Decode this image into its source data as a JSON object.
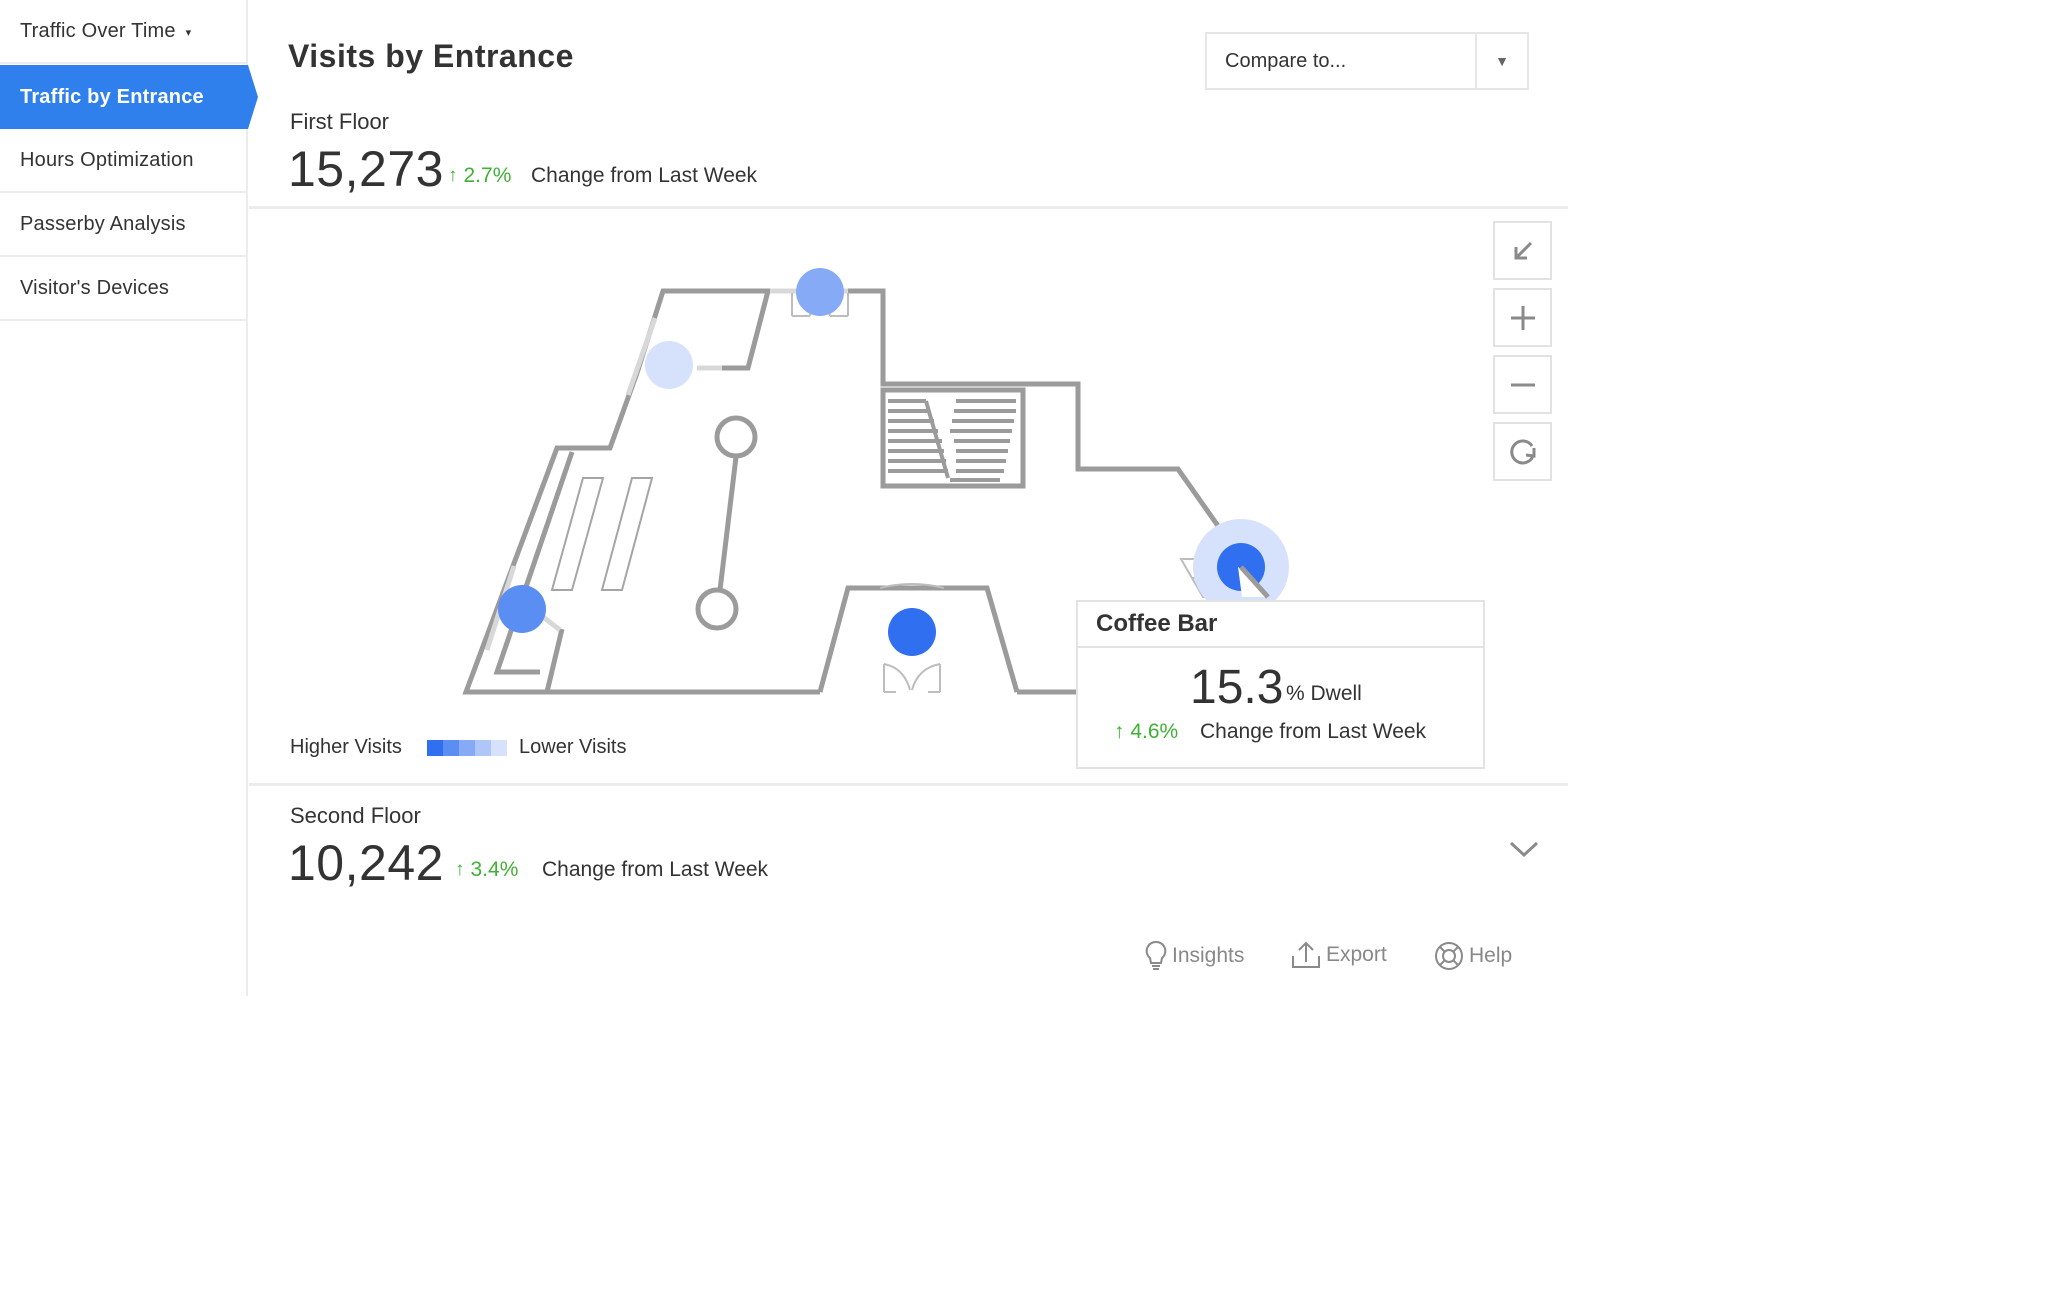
{
  "sidebar": {
    "items": [
      {
        "label": "Traffic Over Time",
        "has_dropdown": true,
        "active": false
      },
      {
        "label": "Traffic by Entrance",
        "active": true
      },
      {
        "label": "Hours Optimization",
        "active": false
      },
      {
        "label": "Passerby Analysis",
        "active": false
      },
      {
        "label": "Visitor's Devices",
        "active": false
      }
    ],
    "dropdown_glyph": "▾"
  },
  "header": {
    "title": "Visits by Entrance",
    "compare": {
      "label": "Compare to...",
      "caret": "▼"
    }
  },
  "floors": [
    {
      "name": "First Floor",
      "count": "15,273",
      "change": "2.7%",
      "change_direction": "up",
      "change_label": "Change from Last Week",
      "expanded": true
    },
    {
      "name": "Second Floor",
      "count": "10,242",
      "change": "3.4%",
      "change_direction": "up",
      "change_label": "Change from Last Week",
      "expanded": false
    }
  ],
  "map": {
    "controls": [
      {
        "name": "collapse-map-button",
        "icon": "arrow-down-left-icon"
      },
      {
        "name": "zoom-in-button",
        "icon": "plus-icon"
      },
      {
        "name": "zoom-out-button",
        "icon": "minus-icon"
      },
      {
        "name": "refresh-button",
        "icon": "refresh-icon"
      }
    ],
    "legend": {
      "high_label": "Higher Visits",
      "low_label": "Lower Visits",
      "scale_colors": [
        "#2f6ff0",
        "#5b8ef3",
        "#86aaf6",
        "#afc6f9",
        "#d6e2fc"
      ]
    },
    "entrances": [
      {
        "name": "north",
        "intensity": "medium"
      },
      {
        "name": "north-west",
        "intensity": "low"
      },
      {
        "name": "west",
        "intensity": "medium"
      },
      {
        "name": "south",
        "intensity": "high"
      },
      {
        "name": "coffee-bar",
        "intensity": "high",
        "selected": true
      }
    ]
  },
  "tooltip": {
    "title": "Coffee Bar",
    "value": "15.3",
    "unit": "% Dwell",
    "change": "4.6%",
    "change_direction": "up",
    "change_label": "Change from Last Week"
  },
  "footer": {
    "links": [
      {
        "label": "Insights",
        "icon": "lightbulb-icon"
      },
      {
        "label": "Export",
        "icon": "export-icon"
      },
      {
        "label": "Help",
        "icon": "lifebuoy-icon"
      }
    ]
  },
  "colors": {
    "accent": "#2f80ed",
    "positive": "#3fb134",
    "map_wall": "#9b9b9b",
    "text": "#333333",
    "muted": "#888888"
  }
}
